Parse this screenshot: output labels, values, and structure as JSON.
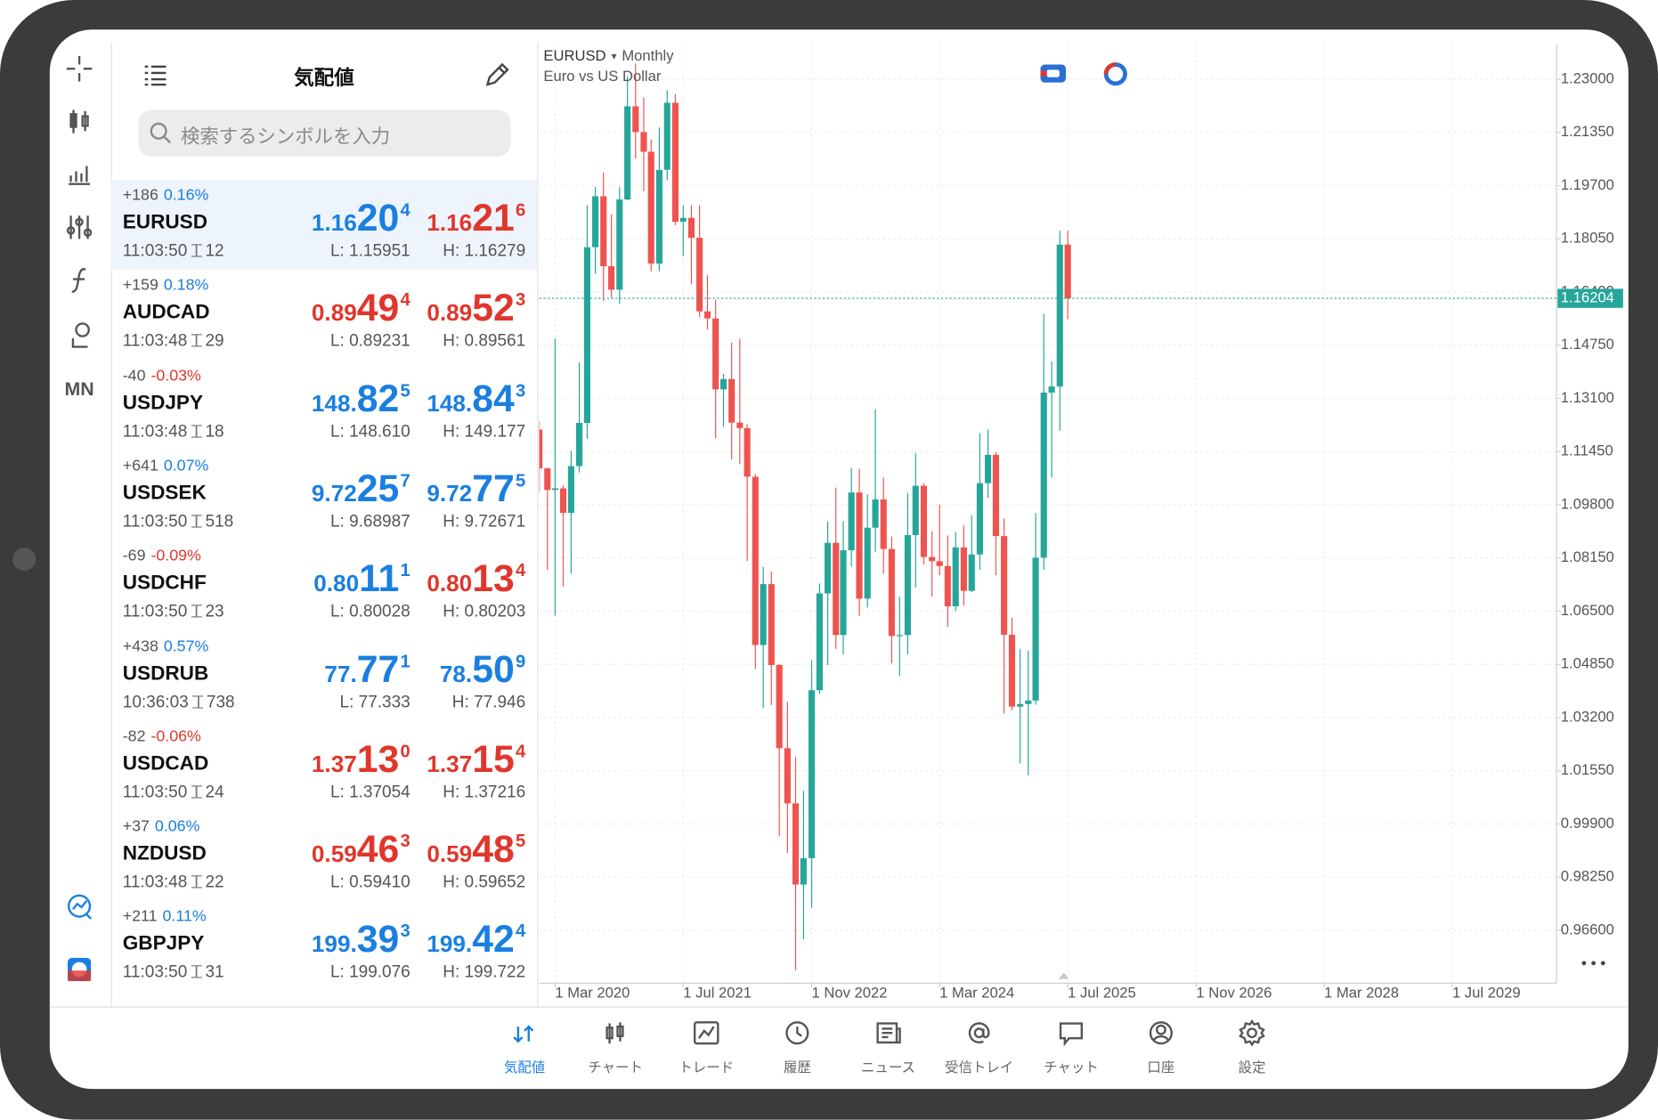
{
  "sidebar": {
    "timeframe": "MN"
  },
  "watchlist": {
    "title": "気配値",
    "search_placeholder": "検索するシンボルを入力",
    "rows": [
      {
        "change": "+186",
        "change_pct": "0.16%",
        "pct_dir": "up",
        "symbol": "EURUSD",
        "time": "11:03:50",
        "spread": "12",
        "bid": [
          "1.16",
          "20",
          "4"
        ],
        "bid_dir": "up",
        "ask": [
          "1.16",
          "21",
          "6"
        ],
        "ask_dir": "down",
        "low": "L: 1.15951",
        "high": "H: 1.16279",
        "selected": true
      },
      {
        "change": "+159",
        "change_pct": "0.18%",
        "pct_dir": "up",
        "symbol": "AUDCAD",
        "time": "11:03:48",
        "spread": "29",
        "bid": [
          "0.89",
          "49",
          "4"
        ],
        "bid_dir": "down",
        "ask": [
          "0.89",
          "52",
          "3"
        ],
        "ask_dir": "down",
        "low": "L: 0.89231",
        "high": "H: 0.89561",
        "selected": false
      },
      {
        "change": "-40",
        "change_pct": "-0.03%",
        "pct_dir": "down",
        "symbol": "USDJPY",
        "time": "11:03:48",
        "spread": "18",
        "bid": [
          "148.",
          "82",
          "5"
        ],
        "bid_dir": "up",
        "ask": [
          "148.",
          "84",
          "3"
        ],
        "ask_dir": "up",
        "low": "L: 148.610",
        "high": "H: 149.177",
        "selected": false
      },
      {
        "change": "+641",
        "change_pct": "0.07%",
        "pct_dir": "up",
        "symbol": "USDSEK",
        "time": "11:03:50",
        "spread": "518",
        "bid": [
          "9.72",
          "25",
          "7"
        ],
        "bid_dir": "up",
        "ask": [
          "9.72",
          "77",
          "5"
        ],
        "ask_dir": "up",
        "low": "L: 9.68987",
        "high": "H: 9.72671",
        "selected": false
      },
      {
        "change": "-69",
        "change_pct": "-0.09%",
        "pct_dir": "down",
        "symbol": "USDCHF",
        "time": "11:03:50",
        "spread": "23",
        "bid": [
          "0.80",
          "11",
          "1"
        ],
        "bid_dir": "up",
        "ask": [
          "0.80",
          "13",
          "4"
        ],
        "ask_dir": "down",
        "low": "L: 0.80028",
        "high": "H: 0.80203",
        "selected": false
      },
      {
        "change": "+438",
        "change_pct": "0.57%",
        "pct_dir": "up",
        "symbol": "USDRUB",
        "time": "10:36:03",
        "spread": "738",
        "bid": [
          "77.",
          "77",
          "1"
        ],
        "bid_dir": "up",
        "ask": [
          "78.",
          "50",
          "9"
        ],
        "ask_dir": "up",
        "low": "L: 77.333",
        "high": "H: 77.946",
        "selected": false
      },
      {
        "change": "-82",
        "change_pct": "-0.06%",
        "pct_dir": "down",
        "symbol": "USDCAD",
        "time": "11:03:50",
        "spread": "24",
        "bid": [
          "1.37",
          "13",
          "0"
        ],
        "bid_dir": "down",
        "ask": [
          "1.37",
          "15",
          "4"
        ],
        "ask_dir": "down",
        "low": "L: 1.37054",
        "high": "H: 1.37216",
        "selected": false
      },
      {
        "change": "+37",
        "change_pct": "0.06%",
        "pct_dir": "up",
        "symbol": "NZDUSD",
        "time": "11:03:48",
        "spread": "22",
        "bid": [
          "0.59",
          "46",
          "3"
        ],
        "bid_dir": "down",
        "ask": [
          "0.59",
          "48",
          "5"
        ],
        "ask_dir": "down",
        "low": "L: 0.59410",
        "high": "H: 0.59652",
        "selected": false
      },
      {
        "change": "+211",
        "change_pct": "0.11%",
        "pct_dir": "up",
        "symbol": "GBPJPY",
        "time": "11:03:50",
        "spread": "31",
        "bid": [
          "199.",
          "39",
          "3"
        ],
        "bid_dir": "up",
        "ask": [
          "199.",
          "42",
          "4"
        ],
        "ask_dir": "up",
        "low": "L: 199.076",
        "high": "H: 199.722",
        "selected": false
      }
    ]
  },
  "chart_data": {
    "type": "candlestick",
    "title": "EURUSD",
    "timeframe": "Monthly",
    "subtitle": "Euro vs US Dollar",
    "x": [
      "2020-01-01",
      "2020-02-01",
      "2020-03-01",
      "2020-04-01",
      "2020-05-01",
      "2020-06-01",
      "2020-07-01",
      "2020-08-01",
      "2020-09-01",
      "2020-10-01",
      "2020-11-01",
      "2020-12-01",
      "2021-01-01",
      "2021-02-01",
      "2021-03-01",
      "2021-04-01",
      "2021-05-01",
      "2021-06-01",
      "2021-07-01",
      "2021-08-01",
      "2021-09-01",
      "2021-10-01",
      "2021-11-01",
      "2021-12-01",
      "2022-01-01",
      "2022-02-01",
      "2022-03-01",
      "2022-04-01",
      "2022-05-01",
      "2022-06-01",
      "2022-07-01",
      "2022-08-01",
      "2022-09-01",
      "2022-10-01",
      "2022-11-01",
      "2022-12-01",
      "2023-01-01",
      "2023-02-01",
      "2023-03-01",
      "2023-04-01",
      "2023-05-01",
      "2023-06-01",
      "2023-07-01",
      "2023-08-01",
      "2023-09-01",
      "2023-10-01",
      "2023-11-01",
      "2023-12-01",
      "2024-01-01",
      "2024-02-01",
      "2024-03-01",
      "2024-04-01",
      "2024-05-01",
      "2024-06-01",
      "2024-07-01",
      "2024-08-01",
      "2024-09-01",
      "2024-10-01",
      "2024-11-01",
      "2024-12-01",
      "2025-01-01",
      "2025-02-01",
      "2025-03-01",
      "2025-04-01",
      "2025-05-01",
      "2025-06-01",
      "2025-07-01"
    ],
    "open": [
      1.1213,
      1.1093,
      1.1026,
      1.1031,
      1.0955,
      1.11,
      1.1234,
      1.1779,
      1.1937,
      1.172,
      1.1647,
      1.1927,
      1.2216,
      1.2136,
      1.2075,
      1.1728,
      1.2019,
      1.2227,
      1.1858,
      1.187,
      1.1808,
      1.158,
      1.1558,
      1.1338,
      1.137,
      1.1235,
      1.1218,
      1.1067,
      1.0545,
      1.0734,
      1.0483,
      1.0225,
      1.0054,
      0.9802,
      0.9884,
      1.0405,
      1.0705,
      1.0862,
      1.0576,
      1.0839,
      1.1018,
      1.0689,
      1.0909,
      1.0997,
      1.0843,
      1.0573,
      1.0576,
      1.0886,
      1.1039,
      1.0818,
      1.0805,
      1.079,
      1.0665,
      1.0848,
      1.0713,
      1.0826,
      1.1047,
      1.1135,
      1.0883,
      1.0577,
      1.0354,
      1.0362,
      1.0373,
      1.0816,
      1.1328,
      1.1347,
      1.1787
    ],
    "high": [
      1.1239,
      1.1095,
      1.1495,
      1.104,
      1.1147,
      1.1422,
      1.1909,
      1.1966,
      1.2011,
      1.1881,
      1.1965,
      1.231,
      1.2349,
      1.2243,
      1.2113,
      1.215,
      1.2266,
      1.2254,
      1.1909,
      1.1909,
      1.1909,
      1.1692,
      1.1616,
      1.1386,
      1.1483,
      1.1495,
      1.123,
      1.1076,
      1.0787,
      1.0773,
      1.0486,
      1.0369,
      1.0198,
      1.0093,
      1.0497,
      1.0736,
      1.0929,
      1.1033,
      1.093,
      1.1095,
      1.1092,
      1.1012,
      1.1276,
      1.1065,
      1.0882,
      1.0695,
      1.1017,
      1.114,
      1.1046,
      1.0898,
      1.0981,
      1.0885,
      1.0895,
      1.0916,
      1.0948,
      1.1202,
      1.1214,
      1.1144,
      1.0937,
      1.063,
      1.0533,
      1.0528,
      1.0954,
      1.1573,
      1.1425,
      1.183,
      1.183
    ],
    "low": [
      1.1019,
      1.0778,
      1.0636,
      1.0727,
      1.0767,
      1.108,
      1.1185,
      1.1696,
      1.1612,
      1.1622,
      1.1603,
      1.1925,
      1.2054,
      1.1952,
      1.1704,
      1.1704,
      1.1986,
      1.1847,
      1.1752,
      1.1664,
      1.1563,
      1.1524,
      1.1186,
      1.1222,
      1.1121,
      1.1106,
      1.0806,
      1.0471,
      1.0349,
      1.0359,
      0.9952,
      0.99,
      0.9536,
      0.9632,
      0.973,
      1.0393,
      1.0483,
      1.0533,
      1.0516,
      1.0788,
      1.0635,
      1.0662,
      1.0834,
      1.0766,
      1.0488,
      1.0448,
      1.0516,
      1.0724,
      1.0795,
      1.0695,
      1.0761,
      1.0601,
      1.065,
      1.0668,
      1.0709,
      1.0778,
      1.1001,
      1.0761,
      1.0333,
      1.0343,
      1.0178,
      1.0141,
      1.036,
      1.0778,
      1.1065,
      1.121,
      1.1556
    ],
    "close": [
      1.1093,
      1.1026,
      1.1031,
      1.0955,
      1.11,
      1.1234,
      1.1779,
      1.1937,
      1.172,
      1.1647,
      1.1927,
      1.2216,
      1.2136,
      1.2075,
      1.1728,
      1.2019,
      1.2227,
      1.1858,
      1.187,
      1.1808,
      1.158,
      1.1558,
      1.1338,
      1.137,
      1.1235,
      1.1218,
      1.1067,
      1.0545,
      1.0734,
      1.0483,
      1.0225,
      1.0054,
      0.9802,
      0.9884,
      1.0405,
      1.0705,
      1.0862,
      1.0576,
      1.0839,
      1.1018,
      1.0689,
      1.0909,
      1.0997,
      1.0843,
      1.0573,
      1.0576,
      1.0886,
      1.1039,
      1.0818,
      1.0805,
      1.079,
      1.0665,
      1.0848,
      1.0713,
      1.0826,
      1.1047,
      1.1135,
      1.0883,
      1.0577,
      1.0354,
      1.0362,
      1.0373,
      1.0816,
      1.1328,
      1.1347,
      1.1787,
      1.16204
    ],
    "up_color": "#26a69a",
    "down_color": "#ef5350",
    "last_price": 1.16204,
    "last_price_color": "#26a69a",
    "grid": true,
    "xlim": [
      "2020-01-01",
      "2030-08-01"
    ],
    "xticks": [
      {
        "value": "2020-03-01",
        "label": "1 Mar 2020"
      },
      {
        "value": "2021-07-01",
        "label": "1 Jul 2021"
      },
      {
        "value": "2022-11-01",
        "label": "1 Nov 2022"
      },
      {
        "value": "2024-03-01",
        "label": "1 Mar 2024"
      },
      {
        "value": "2025-07-01",
        "label": "1 Jul 2025"
      },
      {
        "value": "2026-11-01",
        "label": "1 Nov 2026"
      },
      {
        "value": "2028-03-01",
        "label": "1 Mar 2028"
      },
      {
        "value": "2029-07-01",
        "label": "1 Jul 2029"
      }
    ],
    "ylim": [
      0.9496,
      1.2408
    ],
    "yticks": [
      {
        "value": 1.23,
        "label": "1.23000"
      },
      {
        "value": 1.2135,
        "label": "1.21350"
      },
      {
        "value": 1.197,
        "label": "1.19700"
      },
      {
        "value": 1.1805,
        "label": "1.18050"
      },
      {
        "value": 1.164,
        "label": "1.16400"
      },
      {
        "value": 1.1475,
        "label": "1.14750"
      },
      {
        "value": 1.131,
        "label": "1.13100"
      },
      {
        "value": 1.1145,
        "label": "1.11450"
      },
      {
        "value": 1.098,
        "label": "1.09800"
      },
      {
        "value": 1.0815,
        "label": "1.08150"
      },
      {
        "value": 1.065,
        "label": "1.06500"
      },
      {
        "value": 1.0485,
        "label": "1.04850"
      },
      {
        "value": 1.032,
        "label": "1.03200"
      },
      {
        "value": 1.0155,
        "label": "1.01550"
      },
      {
        "value": 0.999,
        "label": "0.99900"
      },
      {
        "value": 0.9825,
        "label": "0.98250"
      },
      {
        "value": 0.966,
        "label": "0.96600"
      }
    ]
  },
  "nav": {
    "items": [
      "気配値",
      "チャート",
      "トレード",
      "履歴",
      "ニュース",
      "受信トレイ",
      "チャット",
      "口座",
      "設定"
    ],
    "active": 0
  }
}
